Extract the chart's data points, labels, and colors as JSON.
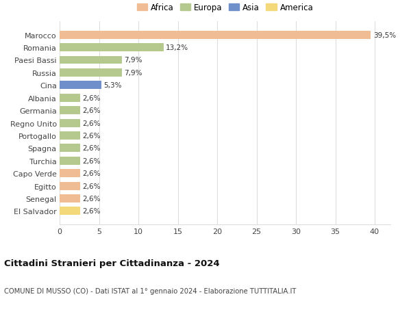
{
  "countries": [
    "Marocco",
    "Romania",
    "Paesi Bassi",
    "Russia",
    "Cina",
    "Albania",
    "Germania",
    "Regno Unito",
    "Portogallo",
    "Spagna",
    "Turchia",
    "Capo Verde",
    "Egitto",
    "Senegal",
    "El Salvador"
  ],
  "values": [
    39.5,
    13.2,
    7.9,
    7.9,
    5.3,
    2.6,
    2.6,
    2.6,
    2.6,
    2.6,
    2.6,
    2.6,
    2.6,
    2.6,
    2.6
  ],
  "labels": [
    "39,5%",
    "13,2%",
    "7,9%",
    "7,9%",
    "5,3%",
    "2,6%",
    "2,6%",
    "2,6%",
    "2,6%",
    "2,6%",
    "2,6%",
    "2,6%",
    "2,6%",
    "2,6%",
    "2,6%"
  ],
  "colors": [
    "#F0BC94",
    "#B5C98E",
    "#B5C98E",
    "#B5C98E",
    "#6E8FC9",
    "#B5C98E",
    "#B5C98E",
    "#B5C98E",
    "#B5C98E",
    "#B5C98E",
    "#B5C98E",
    "#F0BC94",
    "#F0BC94",
    "#F0BC94",
    "#F4D97A"
  ],
  "legend_labels": [
    "Africa",
    "Europa",
    "Asia",
    "America"
  ],
  "legend_colors": [
    "#F0BC94",
    "#B5C98E",
    "#6E8FC9",
    "#F4D97A"
  ],
  "title": "Cittadini Stranieri per Cittadinanza - 2024",
  "subtitle": "COMUNE DI MUSSO (CO) - Dati ISTAT al 1° gennaio 2024 - Elaborazione TUTTITALIA.IT",
  "xlim": [
    0,
    42
  ],
  "xticks": [
    0,
    5,
    10,
    15,
    20,
    25,
    30,
    35,
    40
  ],
  "bg_color": "#ffffff",
  "grid_color": "#dddddd",
  "bar_height": 0.65
}
